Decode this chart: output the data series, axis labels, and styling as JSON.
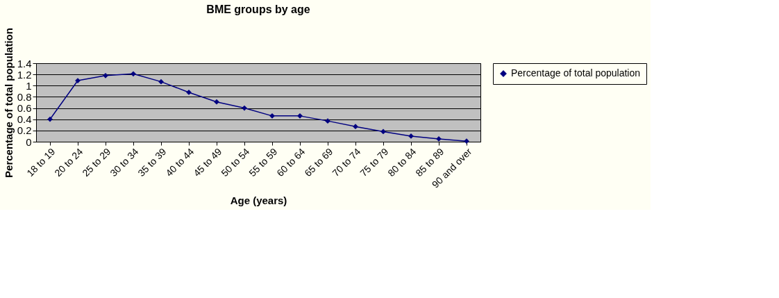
{
  "chart_data": {
    "type": "line",
    "title": "BME groups by age",
    "xlabel": "Age (years)",
    "ylabel": "Percentage of total population",
    "categories": [
      "18 to 19",
      "20 to 24",
      "25 to 29",
      "30 to 34",
      "35 to 39",
      "40 to 44",
      "45 to 49",
      "50 to 54",
      "55 to 59",
      "60 to 64",
      "65 to 69",
      "70 to 74",
      "75 to 79",
      "80 to 84",
      "85 to 89",
      "90 and over"
    ],
    "series": [
      {
        "name": "Percentage of total population",
        "color": "#000080",
        "values": [
          0.4,
          1.09,
          1.18,
          1.21,
          1.07,
          0.88,
          0.71,
          0.6,
          0.46,
          0.46,
          0.37,
          0.27,
          0.18,
          0.1,
          0.05,
          0.01
        ]
      }
    ],
    "ylim": [
      0,
      1.4
    ],
    "yticks": [
      0,
      0.2,
      0.4,
      0.6,
      0.8,
      1,
      1.2,
      1.4
    ],
    "grid": "y",
    "legend": "right",
    "marker": "diamond",
    "line_style": "solid"
  }
}
